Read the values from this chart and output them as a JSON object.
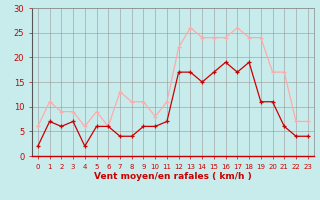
{
  "hours": [
    0,
    1,
    2,
    3,
    4,
    5,
    6,
    7,
    8,
    9,
    10,
    11,
    12,
    13,
    14,
    15,
    16,
    17,
    18,
    19,
    20,
    21,
    22,
    23
  ],
  "wind_avg": [
    2,
    7,
    6,
    7,
    2,
    6,
    6,
    4,
    4,
    6,
    6,
    7,
    17,
    17,
    15,
    17,
    19,
    17,
    19,
    11,
    11,
    6,
    4,
    4
  ],
  "wind_gust": [
    6,
    11,
    9,
    9,
    6,
    9,
    6,
    13,
    11,
    11,
    8,
    11,
    22,
    26,
    24,
    24,
    24,
    26,
    24,
    24,
    17,
    17,
    7,
    7
  ],
  "avg_color": "#cc0000",
  "gust_color": "#ffaaaa",
  "bg_color": "#c8ecec",
  "grid_color": "#999999",
  "xlabel": "Vent moyen/en rafales ( km/h )",
  "ylim": [
    0,
    30
  ],
  "yticks": [
    0,
    5,
    10,
    15,
    20,
    25,
    30
  ],
  "xlim": [
    -0.5,
    23.5
  ],
  "tick_color": "#cc0000",
  "label_color": "#cc0000"
}
